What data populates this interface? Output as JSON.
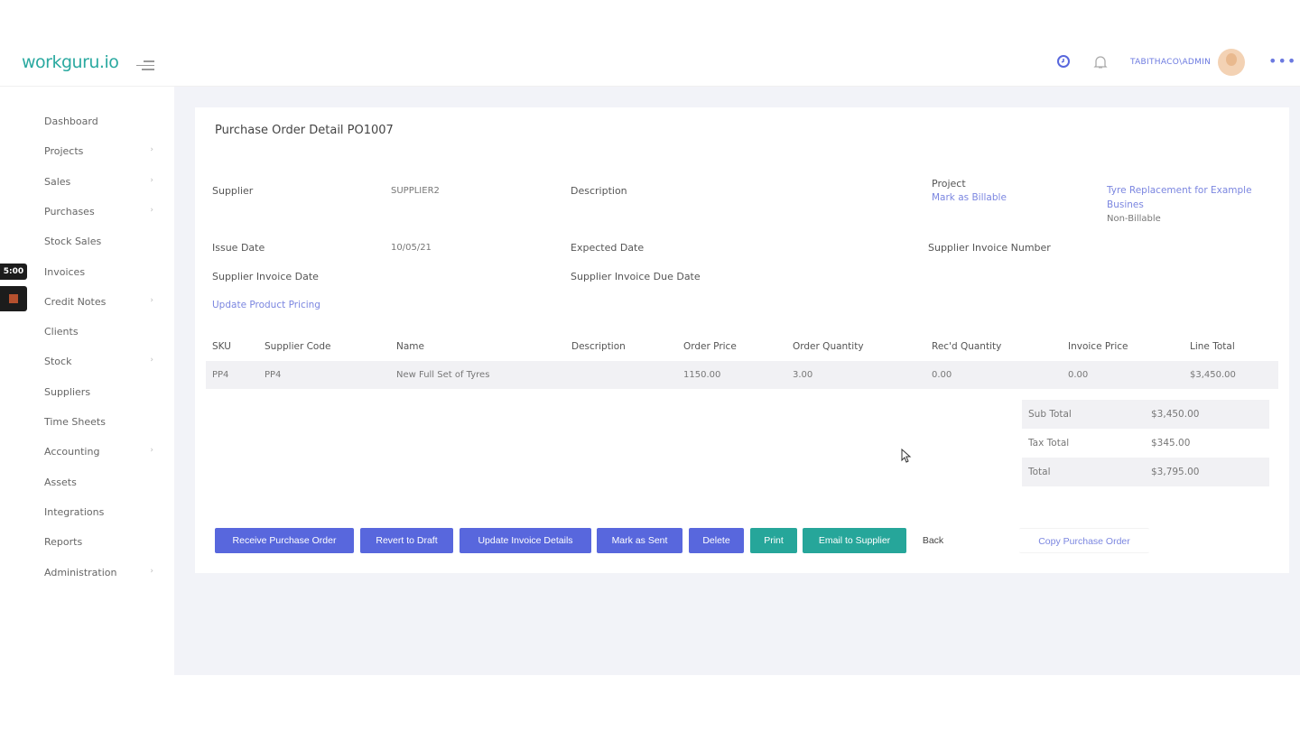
{
  "app": {
    "logo": "workguru.io",
    "user": "TABITHACO\\ADMIN",
    "timer": "5:00"
  },
  "sidebar": {
    "items": [
      {
        "label": "Dashboard",
        "chevron": false
      },
      {
        "label": "Projects",
        "chevron": true
      },
      {
        "label": "Sales",
        "chevron": true
      },
      {
        "label": "Purchases",
        "chevron": true
      },
      {
        "label": "Stock Sales",
        "chevron": false
      },
      {
        "label": "Invoices",
        "chevron": false
      },
      {
        "label": "Credit Notes",
        "chevron": true
      },
      {
        "label": "Clients",
        "chevron": false
      },
      {
        "label": "Stock",
        "chevron": true
      },
      {
        "label": "Suppliers",
        "chevron": false
      },
      {
        "label": "Time Sheets",
        "chevron": false
      },
      {
        "label": "Accounting",
        "chevron": true
      },
      {
        "label": "Assets",
        "chevron": false
      },
      {
        "label": "Integrations",
        "chevron": false
      },
      {
        "label": "Reports",
        "chevron": false
      },
      {
        "label": "Administration",
        "chevron": true
      }
    ]
  },
  "page": {
    "title": "Purchase Order Detail PO1007"
  },
  "details": {
    "supplier_label": "Supplier",
    "supplier": "SUPPLIER2",
    "description_label": "Description",
    "project_label": "Project",
    "mark_billable": "Mark as Billable",
    "project_name": "Tyre Replacement for Example",
    "project_name2": "Busines",
    "billing": "Non-Billable",
    "issue_date_label": "Issue Date",
    "issue_date": "10/05/21",
    "expected_date_label": "Expected Date",
    "supplier_invoice_number_label": "Supplier Invoice Number",
    "supplier_invoice_date_label": "Supplier Invoice Date",
    "supplier_invoice_due_label": "Supplier Invoice Due Date",
    "update_pricing": "Update Product Pricing"
  },
  "table": {
    "headers": [
      "SKU",
      "Supplier Code",
      "Name",
      "Description",
      "Order Price",
      "Order Quantity",
      "Rec'd Quantity",
      "Invoice Price",
      "Line Total"
    ],
    "rows": [
      [
        "PP4",
        "PP4",
        "New Full Set of Tyres",
        "",
        "1150.00",
        "3.00",
        "0.00",
        "0.00",
        "$3,450.00"
      ]
    ]
  },
  "totals": {
    "sub_label": "Sub Total",
    "sub": "$3,450.00",
    "tax_label": "Tax Total",
    "tax": "$345.00",
    "total_label": "Total",
    "total": "$3,795.00"
  },
  "buttons": {
    "receive": "Receive Purchase Order",
    "revert": "Revert to Draft",
    "update_invoice": "Update Invoice Details",
    "mark_sent": "Mark as Sent",
    "delete": "Delete",
    "print": "Print",
    "email": "Email to Supplier",
    "back": "Back",
    "copy": "Copy Purchase Order"
  },
  "colors": {
    "primary": "#5867dd",
    "teal": "#26a69a",
    "brand": "#2aa9a0"
  }
}
